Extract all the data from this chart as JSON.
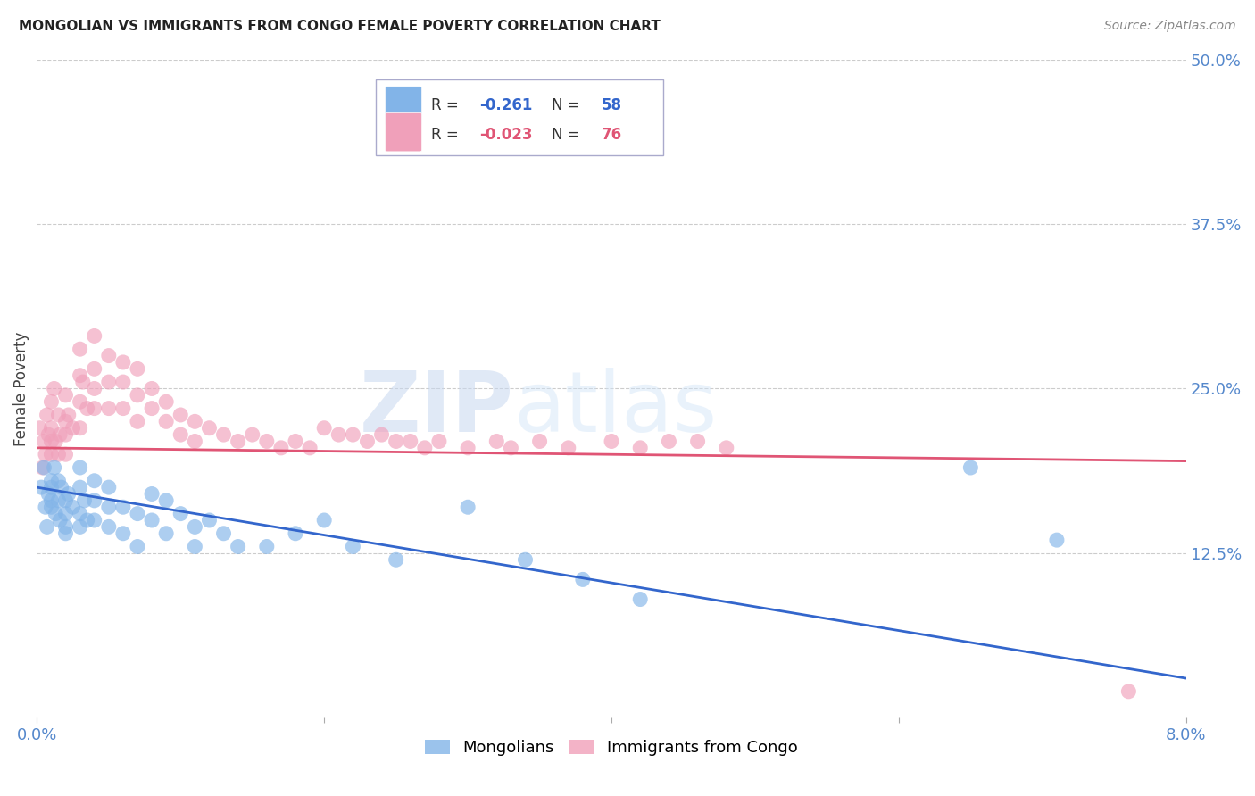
{
  "title": "MONGOLIAN VS IMMIGRANTS FROM CONGO FEMALE POVERTY CORRELATION CHART",
  "source": "Source: ZipAtlas.com",
  "ylabel": "Female Poverty",
  "watermark_zip": "ZIP",
  "watermark_atlas": "atlas",
  "xlim": [
    0.0,
    0.08
  ],
  "ylim": [
    0.0,
    0.5
  ],
  "yticks": [
    0.0,
    0.125,
    0.25,
    0.375,
    0.5
  ],
  "ytick_labels": [
    "",
    "12.5%",
    "25.0%",
    "37.5%",
    "50.0%"
  ],
  "xtick_labels": [
    "0.0%",
    "",
    "",
    "",
    "8.0%"
  ],
  "mongolian_color": "#82B4E8",
  "congo_color": "#F0A0BA",
  "mongolian_line_color": "#3366CC",
  "congo_line_color": "#E05575",
  "R_mongolian": -0.261,
  "N_mongolian": 58,
  "R_congo": -0.023,
  "N_congo": 76,
  "mongolian_x": [
    0.0003,
    0.0005,
    0.0006,
    0.0007,
    0.0008,
    0.001,
    0.001,
    0.001,
    0.001,
    0.0012,
    0.0013,
    0.0015,
    0.0015,
    0.0016,
    0.0017,
    0.002,
    0.002,
    0.002,
    0.002,
    0.0022,
    0.0025,
    0.003,
    0.003,
    0.003,
    0.003,
    0.0033,
    0.0035,
    0.004,
    0.004,
    0.004,
    0.005,
    0.005,
    0.005,
    0.006,
    0.006,
    0.007,
    0.007,
    0.008,
    0.008,
    0.009,
    0.009,
    0.01,
    0.011,
    0.011,
    0.012,
    0.013,
    0.014,
    0.016,
    0.018,
    0.02,
    0.022,
    0.025,
    0.03,
    0.034,
    0.038,
    0.042,
    0.065,
    0.071
  ],
  "mongolian_y": [
    0.175,
    0.19,
    0.16,
    0.145,
    0.17,
    0.175,
    0.16,
    0.18,
    0.165,
    0.19,
    0.155,
    0.165,
    0.18,
    0.15,
    0.175,
    0.14,
    0.165,
    0.155,
    0.145,
    0.17,
    0.16,
    0.19,
    0.175,
    0.155,
    0.145,
    0.165,
    0.15,
    0.18,
    0.165,
    0.15,
    0.175,
    0.16,
    0.145,
    0.16,
    0.14,
    0.155,
    0.13,
    0.17,
    0.15,
    0.165,
    0.14,
    0.155,
    0.145,
    0.13,
    0.15,
    0.14,
    0.13,
    0.13,
    0.14,
    0.15,
    0.13,
    0.12,
    0.16,
    0.12,
    0.105,
    0.09,
    0.19,
    0.135
  ],
  "congo_x": [
    0.0002,
    0.0004,
    0.0005,
    0.0006,
    0.0007,
    0.0008,
    0.001,
    0.001,
    0.001,
    0.001,
    0.0012,
    0.0013,
    0.0015,
    0.0015,
    0.0016,
    0.002,
    0.002,
    0.002,
    0.002,
    0.0022,
    0.0025,
    0.003,
    0.003,
    0.003,
    0.003,
    0.0032,
    0.0035,
    0.004,
    0.004,
    0.004,
    0.004,
    0.005,
    0.005,
    0.005,
    0.006,
    0.006,
    0.006,
    0.007,
    0.007,
    0.007,
    0.008,
    0.008,
    0.009,
    0.009,
    0.01,
    0.01,
    0.011,
    0.011,
    0.012,
    0.013,
    0.014,
    0.015,
    0.016,
    0.017,
    0.018,
    0.019,
    0.02,
    0.021,
    0.022,
    0.023,
    0.024,
    0.025,
    0.026,
    0.027,
    0.028,
    0.03,
    0.032,
    0.033,
    0.035,
    0.037,
    0.04,
    0.042,
    0.044,
    0.046,
    0.048,
    0.076
  ],
  "congo_y": [
    0.22,
    0.19,
    0.21,
    0.2,
    0.23,
    0.215,
    0.24,
    0.22,
    0.2,
    0.21,
    0.25,
    0.21,
    0.23,
    0.2,
    0.215,
    0.245,
    0.225,
    0.215,
    0.2,
    0.23,
    0.22,
    0.28,
    0.26,
    0.24,
    0.22,
    0.255,
    0.235,
    0.29,
    0.265,
    0.25,
    0.235,
    0.275,
    0.255,
    0.235,
    0.27,
    0.255,
    0.235,
    0.265,
    0.245,
    0.225,
    0.25,
    0.235,
    0.24,
    0.225,
    0.23,
    0.215,
    0.225,
    0.21,
    0.22,
    0.215,
    0.21,
    0.215,
    0.21,
    0.205,
    0.21,
    0.205,
    0.22,
    0.215,
    0.215,
    0.21,
    0.215,
    0.21,
    0.21,
    0.205,
    0.21,
    0.205,
    0.21,
    0.205,
    0.21,
    0.205,
    0.21,
    0.205,
    0.21,
    0.21,
    0.205,
    0.02
  ],
  "background_color": "#FFFFFF",
  "grid_color": "#CCCCCC",
  "title_fontsize": 11,
  "axis_label_color": "#5588CC",
  "tick_label_color": "#5588CC"
}
